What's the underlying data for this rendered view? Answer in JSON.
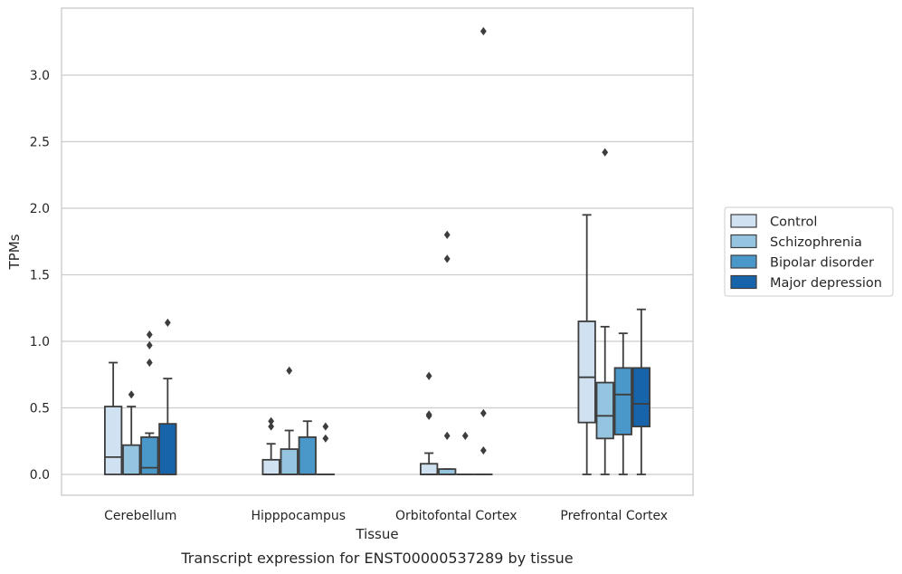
{
  "chart_data": {
    "type": "box",
    "xlabel": "Tissue",
    "ylabel": "TPMs",
    "caption": "Transcript expression for ENST00000537289 by tissue",
    "ylim": [
      -0.16,
      3.5
    ],
    "yticks": [
      0.0,
      0.5,
      1.0,
      1.5,
      2.0,
      2.5,
      3.0
    ],
    "ytick_labels": [
      "0.0",
      "0.5",
      "1.0",
      "1.5",
      "2.0",
      "2.5",
      "3.0"
    ],
    "grid": "horizontal",
    "legend_position": "right",
    "categories": [
      "Cerebellum",
      "Hipppocampus",
      "Orbitofontal Cortex",
      "Prefrontal Cortex"
    ],
    "series": [
      {
        "name": "Control",
        "color": "#d0e1f2",
        "boxes": [
          {
            "whislo": 0,
            "q1": 0,
            "med": 0.13,
            "q3": 0.51,
            "whishi": 0.84,
            "fliers": []
          },
          {
            "whislo": 0,
            "q1": 0,
            "med": 0,
            "q3": 0.11,
            "whishi": 0.23,
            "fliers": [
              0.36,
              0.4
            ]
          },
          {
            "whislo": 0,
            "q1": 0,
            "med": 0,
            "q3": 0.08,
            "whishi": 0.16,
            "fliers": [
              0.44,
              0.45,
              0.74
            ]
          },
          {
            "whislo": 0,
            "q1": 0.39,
            "med": 0.73,
            "q3": 1.15,
            "whishi": 1.95,
            "fliers": []
          }
        ]
      },
      {
        "name": "Schizophrenia",
        "color": "#94c4df",
        "boxes": [
          {
            "whislo": 0,
            "q1": 0,
            "med": 0,
            "q3": 0.22,
            "whishi": 0.51,
            "fliers": [
              0.6
            ]
          },
          {
            "whislo": 0,
            "q1": 0,
            "med": 0,
            "q3": 0.19,
            "whishi": 0.33,
            "fliers": [
              0.78
            ]
          },
          {
            "whislo": 0,
            "q1": 0,
            "med": 0,
            "q3": 0.04,
            "whishi": 0.04,
            "fliers": [
              0.29,
              1.62,
              1.8
            ]
          },
          {
            "whislo": 0,
            "q1": 0.27,
            "med": 0.44,
            "q3": 0.69,
            "whishi": 1.11,
            "fliers": [
              2.42
            ]
          }
        ]
      },
      {
        "name": "Bipolar disorder",
        "color": "#4a98c9",
        "boxes": [
          {
            "whislo": 0,
            "q1": 0,
            "med": 0.05,
            "q3": 0.28,
            "whishi": 0.31,
            "fliers": [
              0.84,
              0.97,
              1.05
            ]
          },
          {
            "whislo": 0,
            "q1": 0,
            "med": 0,
            "q3": 0.28,
            "whishi": 0.4,
            "fliers": []
          },
          {
            "whislo": 0,
            "q1": 0,
            "med": 0,
            "q3": 0,
            "whishi": 0,
            "fliers": [
              0.29
            ]
          },
          {
            "whislo": 0,
            "q1": 0.3,
            "med": 0.6,
            "q3": 0.8,
            "whishi": 1.06,
            "fliers": []
          }
        ]
      },
      {
        "name": "Major depression",
        "color": "#1764ab",
        "boxes": [
          {
            "whislo": 0,
            "q1": 0,
            "med": 0,
            "q3": 0.38,
            "whishi": 0.72,
            "fliers": [
              1.14
            ]
          },
          {
            "whislo": 0,
            "q1": 0,
            "med": 0,
            "q3": 0,
            "whishi": 0,
            "fliers": [
              0.27,
              0.36
            ]
          },
          {
            "whislo": 0,
            "q1": 0,
            "med": 0,
            "q3": 0,
            "whishi": 0,
            "fliers": [
              0.18,
              0.46,
              3.33
            ]
          },
          {
            "whislo": 0,
            "q1": 0.36,
            "med": 0.53,
            "q3": 0.8,
            "whishi": 1.24,
            "fliers": []
          }
        ]
      }
    ]
  }
}
